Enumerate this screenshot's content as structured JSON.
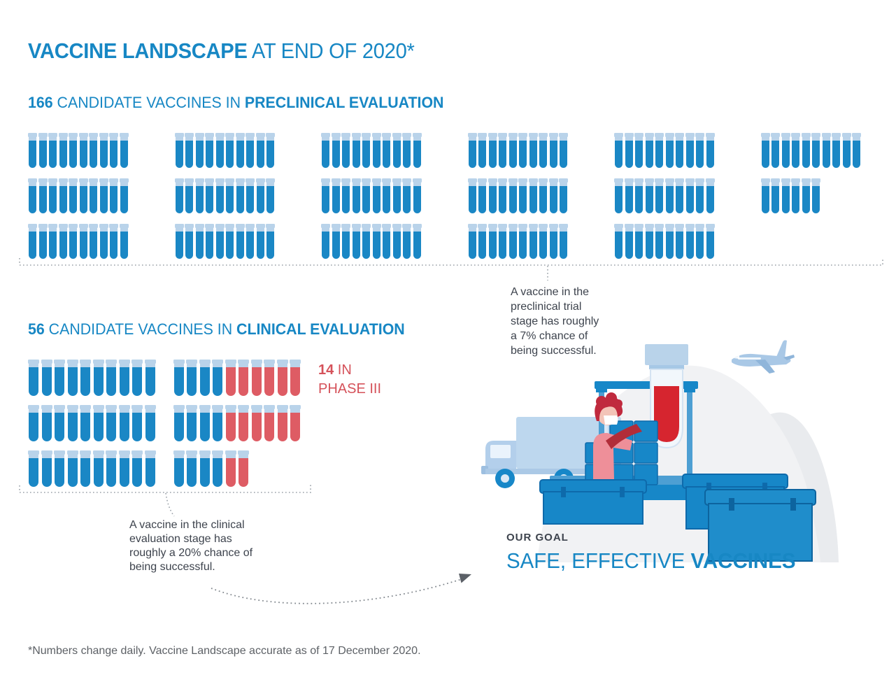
{
  "header": {
    "title_strong": "VACCINE LANDSCAPE",
    "title_light": " AT END OF 2020*"
  },
  "preclinical": {
    "heading_count": "166",
    "heading_mid": " CANDIDATE VACCINES IN ",
    "heading_strong": "PRECLINICAL EVALUATION",
    "total": 166,
    "rows": [
      [
        {
          "blue": 10
        },
        {
          "blue": 10
        },
        {
          "blue": 10
        },
        {
          "blue": 10
        },
        {
          "blue": 10
        },
        {
          "blue": 10
        }
      ],
      [
        {
          "blue": 10
        },
        {
          "blue": 10
        },
        {
          "blue": 10
        },
        {
          "blue": 10
        },
        {
          "blue": 10
        },
        {
          "blue": 6
        }
      ],
      [
        {
          "blue": 10
        },
        {
          "blue": 10
        },
        {
          "blue": 10
        },
        {
          "blue": 10
        },
        {
          "blue": 10
        }
      ]
    ],
    "annotation": "A vaccine in the\npreclinical trial\nstage has roughly\na 7% chance of\nbeing successful."
  },
  "clinical": {
    "heading_count": "56",
    "heading_mid": " CANDIDATE VACCINES IN ",
    "heading_strong": "CLINICAL EVALUATION",
    "total": 56,
    "phase3_total": 14,
    "phase3_count": "14",
    "phase3_in": " IN",
    "phase3_line2": "PHASE III",
    "rows": [
      [
        {
          "blue": 10
        },
        {
          "blue": 4,
          "red": 6
        }
      ],
      [
        {
          "blue": 10
        },
        {
          "blue": 4,
          "red": 6
        }
      ],
      [
        {
          "blue": 10
        },
        {
          "blue": 4,
          "red": 2
        }
      ]
    ],
    "annotation": "A vaccine in the clinical\nevaluation stage has\nroughly a 20% chance of\nbeing successful."
  },
  "goal": {
    "label": "OUR GOAL",
    "light": "SAFE, EFFECTIVE ",
    "strong": "VACCINES"
  },
  "footer": {
    "note": "*Numbers change daily. Vaccine Landscape accurate as of 17 December 2020."
  },
  "icons": {
    "tube_blue": "test-tube-icon",
    "tube_red": "test-tube-phase3-icon",
    "illustration": [
      "truck-icon",
      "worker-icon",
      "vaccine-vial-icon",
      "crate-icon",
      "cooler-box-icon",
      "airplane-icon"
    ]
  },
  "colors": {
    "brand_blue": "#1787C4",
    "tube_blue": "#1A87C5",
    "tube_cap": "#B9D3EA",
    "phase3_red": "#DE5C64",
    "phase3_text": "#D5525A",
    "vial_liquid_red": "#D6252F",
    "dark_text": "#3D434D",
    "muted_text": "#5D6166",
    "dotted_line": "#9AA1A8"
  },
  "chart_data": {
    "type": "pictograph",
    "title": "Vaccine Landscape at end of 2020",
    "unit": "1 test-tube icon = 1 candidate vaccine",
    "series": [
      {
        "name": "Candidate vaccines in preclinical evaluation",
        "value": 166,
        "note": "A vaccine in the preclinical trial stage has roughly a 7% chance of being successful."
      },
      {
        "name": "Candidate vaccines in clinical evaluation",
        "value": 56,
        "note": "A vaccine in the clinical evaluation stage has roughly a 20% chance of being successful."
      },
      {
        "name": "Candidate vaccines in Phase III (subset of clinical)",
        "value": 14
      }
    ],
    "legend_position": "inline",
    "as_of": "17 December 2020"
  }
}
